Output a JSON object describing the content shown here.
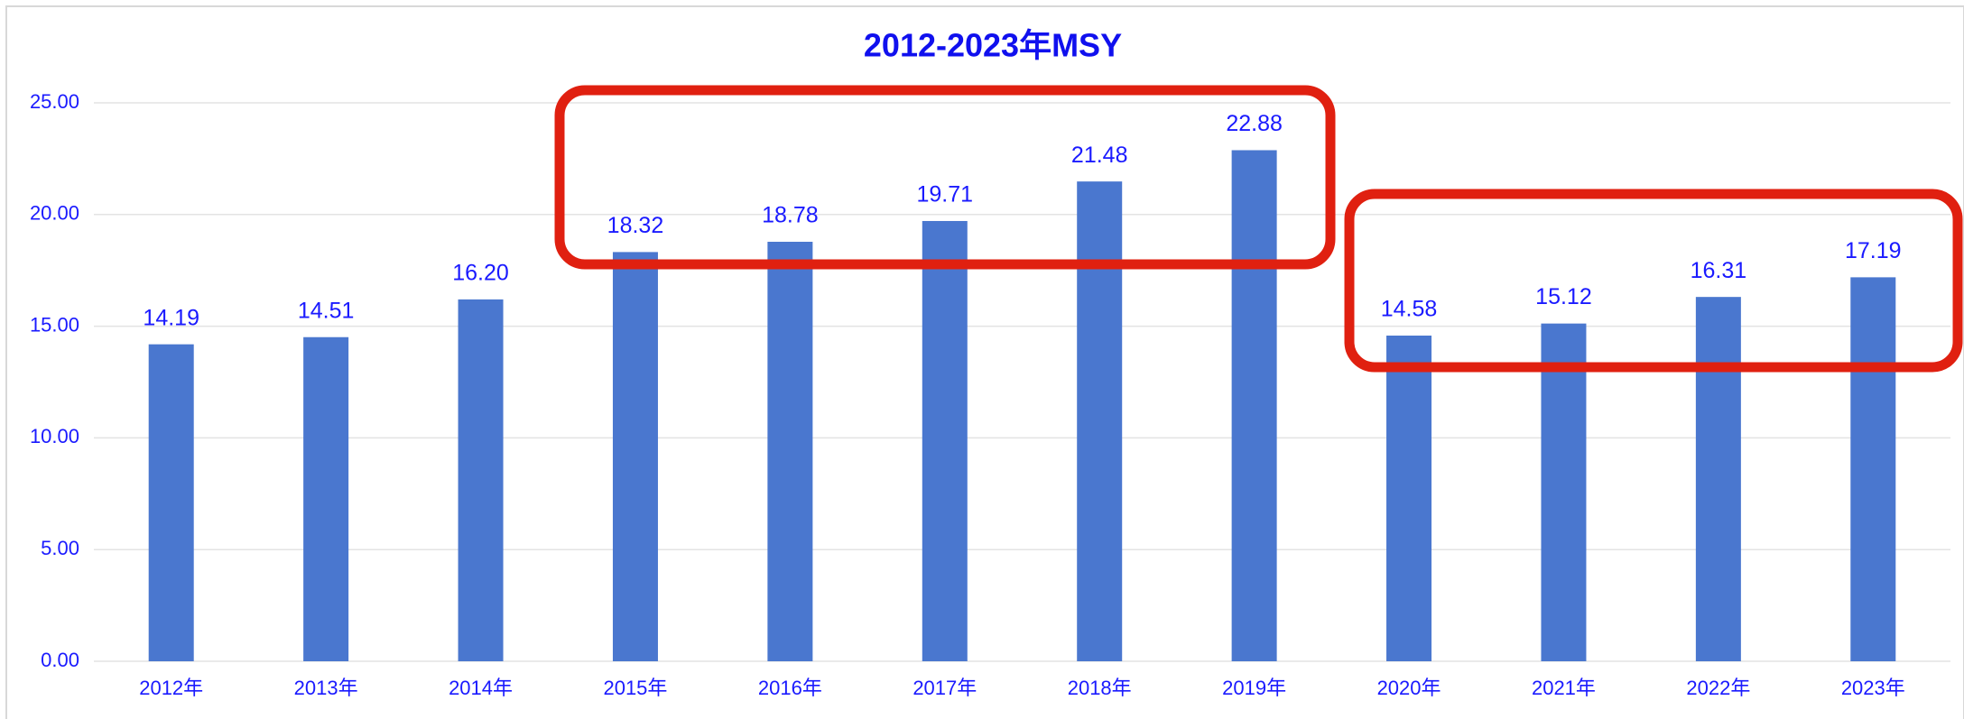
{
  "chart_data": {
    "type": "bar",
    "title": "2012-2023年MSY",
    "categories": [
      "2012年",
      "2013年",
      "2014年",
      "2015年",
      "2016年",
      "2017年",
      "2018年",
      "2019年",
      "2020年",
      "2021年",
      "2022年",
      "2023年"
    ],
    "values": [
      14.19,
      14.51,
      16.2,
      18.32,
      18.78,
      19.71,
      21.48,
      22.88,
      14.58,
      15.12,
      16.31,
      17.19
    ],
    "value_labels": [
      "14.19",
      "14.51",
      "16.20",
      "18.32",
      "18.78",
      "19.71",
      "21.48",
      "22.88",
      "14.58",
      "15.12",
      "16.31",
      "17.19"
    ],
    "color": "#4a77cf",
    "ylim": [
      0,
      25
    ],
    "yticks": [
      {
        "value": 0,
        "label": "0.00"
      },
      {
        "value": 5,
        "label": "5.00"
      },
      {
        "value": 10,
        "label": "10.00"
      },
      {
        "value": 15,
        "label": "15.00"
      },
      {
        "value": 20,
        "label": "20.00"
      },
      {
        "value": 25,
        "label": "25.00"
      }
    ],
    "grid": true
  }
}
